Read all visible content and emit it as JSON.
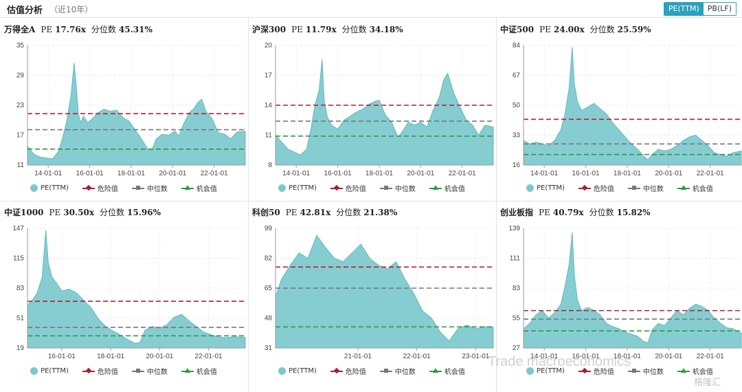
{
  "header": {
    "title": "估值分析",
    "subtitle": "（近10年）",
    "toggle": [
      "PE(TTM)",
      "PB(LF)"
    ],
    "toggle_active": 0
  },
  "legend": {
    "series": "PE(TTM)",
    "danger": "危险值",
    "median": "中位数",
    "opportunity": "机会值"
  },
  "colors": {
    "area": "#86cdd1",
    "area_line": "#5fb9be",
    "danger": "#b01e2f",
    "median": "#777777",
    "opportunity": "#2e9a47",
    "accent": "#2aa1bf"
  },
  "watermark": "Trade macroeconomics",
  "watermark_logo": "格隆汇",
  "chart_data": [
    {
      "type": "area",
      "name": "万得全A",
      "pe_label": "PE",
      "pe": "17.76x",
      "pct_label": "分位数",
      "pct": "45.31%",
      "ylim": [
        11,
        35
      ],
      "yticks": [
        11,
        17,
        23,
        29,
        35
      ],
      "xlim": [
        2013.0,
        2023.5
      ],
      "xticks": [
        2014,
        2016,
        2018,
        2020,
        2022
      ],
      "xtick_labels": [
        "14-01-01",
        "16-01-01",
        "18-01-01",
        "20-01-01",
        "22-01-01"
      ],
      "danger": 21.3,
      "median": 18.1,
      "opportunity": 14.2,
      "x": [
        2013.0,
        2013.3,
        2013.6,
        2013.9,
        2014.2,
        2014.5,
        2014.7,
        2014.9,
        2015.1,
        2015.25,
        2015.35,
        2015.45,
        2015.55,
        2015.7,
        2015.9,
        2016.1,
        2016.4,
        2016.7,
        2017.0,
        2017.3,
        2017.6,
        2017.9,
        2018.2,
        2018.5,
        2018.8,
        2019.0,
        2019.2,
        2019.5,
        2019.8,
        2020.1,
        2020.3,
        2020.5,
        2020.8,
        2021.0,
        2021.2,
        2021.4,
        2021.6,
        2021.9,
        2022.2,
        2022.5,
        2022.8,
        2023.1,
        2023.5
      ],
      "y": [
        14.8,
        13.2,
        12.6,
        12.4,
        12.2,
        13.8,
        16.5,
        20.0,
        25.0,
        31.5,
        27.0,
        21.5,
        19.5,
        20.8,
        19.5,
        20.2,
        21.5,
        22.2,
        21.8,
        22.0,
        20.5,
        19.8,
        18.0,
        16.2,
        14.2,
        14.0,
        16.2,
        17.2,
        17.0,
        17.8,
        16.8,
        19.0,
        21.5,
        22.2,
        23.5,
        24.2,
        21.8,
        20.3,
        17.5,
        17.2,
        16.3,
        17.6,
        17.8
      ]
    },
    {
      "type": "area",
      "name": "沪深300",
      "pe_label": "PE",
      "pe": "11.79x",
      "pct_label": "分位数",
      "pct": "34.18%",
      "ylim": [
        8,
        20
      ],
      "yticks": [
        8,
        11,
        14,
        17,
        20
      ],
      "xlim": [
        2013.0,
        2023.5
      ],
      "xticks": [
        2014,
        2016,
        2018,
        2020,
        2022
      ],
      "xtick_labels": [
        "14-01-01",
        "16-01-01",
        "18-01-01",
        "20-01-01",
        "22-01-01"
      ],
      "danger": 14.0,
      "median": 12.4,
      "opportunity": 10.9,
      "x": [
        2013.0,
        2013.3,
        2013.6,
        2013.9,
        2014.2,
        2014.5,
        2014.7,
        2014.9,
        2015.1,
        2015.25,
        2015.35,
        2015.5,
        2015.7,
        2016.0,
        2016.3,
        2016.6,
        2016.9,
        2017.2,
        2017.5,
        2017.8,
        2018.0,
        2018.3,
        2018.6,
        2018.9,
        2019.1,
        2019.4,
        2019.7,
        2020.0,
        2020.3,
        2020.6,
        2020.9,
        2021.1,
        2021.3,
        2021.6,
        2021.9,
        2022.2,
        2022.5,
        2022.8,
        2023.1,
        2023.5
      ],
      "y": [
        11.0,
        10.3,
        9.6,
        9.3,
        9.0,
        9.6,
        11.5,
        14.0,
        15.5,
        18.6,
        14.5,
        12.8,
        12.0,
        11.6,
        12.5,
        12.9,
        13.3,
        13.6,
        14.1,
        14.4,
        14.5,
        13.0,
        12.3,
        10.8,
        11.3,
        12.3,
        12.0,
        12.3,
        11.8,
        13.5,
        14.8,
        16.5,
        17.2,
        15.2,
        13.8,
        12.5,
        12.0,
        11.0,
        12.0,
        11.8
      ]
    },
    {
      "type": "area",
      "name": "中证500",
      "pe_label": "PE",
      "pe": "24.00x",
      "pct_label": "分位数",
      "pct": "25.59%",
      "ylim": [
        16,
        84
      ],
      "yticks": [
        16,
        33,
        50,
        67,
        84
      ],
      "xlim": [
        2013.0,
        2023.5
      ],
      "xticks": [
        2014,
        2016,
        2018,
        2020,
        2022
      ],
      "xtick_labels": [
        "14-01-01",
        "16-01-01",
        "18-01-01",
        "20-01-01",
        "22-01-01"
      ],
      "danger": 42,
      "median": 28,
      "opportunity": 22,
      "x": [
        2013.0,
        2013.3,
        2013.6,
        2013.9,
        2014.2,
        2014.5,
        2014.8,
        2015.0,
        2015.2,
        2015.35,
        2015.45,
        2015.6,
        2015.8,
        2016.1,
        2016.4,
        2016.7,
        2017.0,
        2017.3,
        2017.6,
        2017.9,
        2018.2,
        2018.5,
        2018.8,
        2019.0,
        2019.2,
        2019.5,
        2019.8,
        2020.1,
        2020.4,
        2020.7,
        2021.0,
        2021.3,
        2021.6,
        2021.9,
        2022.2,
        2022.5,
        2022.8,
        2023.1,
        2023.5
      ],
      "y": [
        30,
        28,
        29,
        28,
        27,
        30,
        36,
        45,
        60,
        83,
        62,
        52,
        47,
        49,
        51,
        48,
        45,
        40,
        36,
        32,
        28,
        25,
        21,
        19,
        22,
        25,
        24,
        25,
        27,
        30,
        32,
        33,
        30,
        27,
        23,
        22,
        21,
        23,
        24
      ]
    },
    {
      "type": "area",
      "name": "中证1000",
      "pe_label": "PE",
      "pe": "30.50x",
      "pct_label": "分位数",
      "pct": "15.96%",
      "ylim": [
        19,
        147
      ],
      "yticks": [
        19,
        51,
        83,
        115,
        147
      ],
      "xlim": [
        2014.6,
        2023.5
      ],
      "xticks": [
        2016,
        2018,
        2020,
        2022
      ],
      "xtick_labels": [
        "16-01-01",
        "18-01-01",
        "20-01-01",
        "22-01-01"
      ],
      "danger": 69,
      "median": 41,
      "opportunity": 32,
      "x": [
        2014.6,
        2014.8,
        2015.0,
        2015.2,
        2015.35,
        2015.45,
        2015.6,
        2015.8,
        2016.0,
        2016.3,
        2016.6,
        2016.9,
        2017.2,
        2017.5,
        2017.8,
        2018.1,
        2018.4,
        2018.7,
        2019.0,
        2019.2,
        2019.4,
        2019.7,
        2020.0,
        2020.3,
        2020.6,
        2020.9,
        2021.2,
        2021.5,
        2021.8,
        2022.1,
        2022.4,
        2022.7,
        2023.0,
        2023.5
      ],
      "y": [
        65,
        70,
        78,
        95,
        145,
        110,
        95,
        88,
        80,
        82,
        78,
        70,
        62,
        50,
        42,
        37,
        33,
        28,
        24,
        25,
        38,
        42,
        40,
        44,
        52,
        55,
        48,
        42,
        36,
        33,
        31,
        30,
        31,
        30.5
      ]
    },
    {
      "type": "area",
      "name": "科创50",
      "pe_label": "PE",
      "pe": "42.81x",
      "pct_label": "分位数",
      "pct": "21.38%",
      "ylim": [
        31,
        99
      ],
      "yticks": [
        31,
        48,
        65,
        82,
        99
      ],
      "xlim": [
        2019.6,
        2023.3
      ],
      "xticks": [
        2021,
        2022,
        2023
      ],
      "xtick_labels": [
        "21-01-01",
        "22-01-01",
        "23-01-01"
      ],
      "danger": 77,
      "median": 65,
      "opportunity": 43,
      "x": [
        2019.6,
        2019.7,
        2019.85,
        2020.0,
        2020.15,
        2020.3,
        2020.45,
        2020.6,
        2020.75,
        2020.9,
        2021.05,
        2021.2,
        2021.35,
        2021.5,
        2021.65,
        2021.8,
        2021.95,
        2022.1,
        2022.25,
        2022.4,
        2022.55,
        2022.7,
        2022.85,
        2023.0,
        2023.15,
        2023.3
      ],
      "y": [
        60,
        70,
        78,
        85,
        82,
        95,
        88,
        82,
        80,
        85,
        90,
        82,
        78,
        76,
        80,
        70,
        62,
        52,
        48,
        40,
        35,
        42,
        44,
        42,
        43,
        42.8
      ]
    },
    {
      "type": "area",
      "name": "创业板指",
      "pe_label": "PE",
      "pe": "40.79x",
      "pct_label": "分位数",
      "pct": "15.82%",
      "ylim": [
        27,
        139
      ],
      "yticks": [
        27,
        55,
        83,
        111,
        139
      ],
      "xlim": [
        2013.0,
        2023.5
      ],
      "xticks": [
        2014,
        2016,
        2018,
        2020,
        2022
      ],
      "xtick_labels": [
        "14-01-01",
        "16-01-01",
        "18-01-01",
        "20-01-01",
        "22-01-01"
      ],
      "danger": 62,
      "median": 54,
      "opportunity": 43,
      "x": [
        2013.0,
        2013.3,
        2013.6,
        2013.9,
        2014.2,
        2014.5,
        2014.8,
        2015.0,
        2015.2,
        2015.35,
        2015.45,
        2015.6,
        2015.8,
        2016.1,
        2016.4,
        2016.7,
        2017.0,
        2017.3,
        2017.6,
        2017.9,
        2018.2,
        2018.5,
        2018.8,
        2019.0,
        2019.2,
        2019.5,
        2019.8,
        2020.1,
        2020.4,
        2020.7,
        2021.0,
        2021.3,
        2021.6,
        2021.9,
        2022.2,
        2022.5,
        2022.8,
        2023.1,
        2023.5
      ],
      "y": [
        45,
        50,
        58,
        62,
        55,
        60,
        68,
        85,
        105,
        135,
        95,
        72,
        62,
        65,
        62,
        58,
        50,
        47,
        45,
        42,
        40,
        38,
        33,
        32,
        44,
        50,
        48,
        55,
        62,
        58,
        64,
        68,
        66,
        62,
        55,
        50,
        46,
        45,
        40.8
      ]
    }
  ]
}
